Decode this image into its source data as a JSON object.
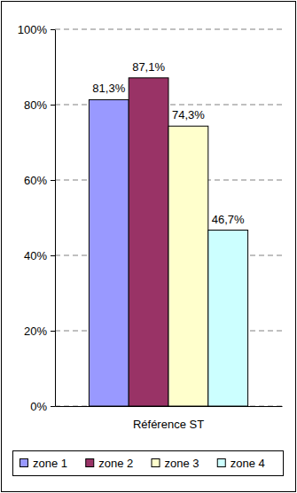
{
  "chart_data": {
    "type": "bar",
    "categories": [
      "Référence ST"
    ],
    "series": [
      {
        "name": "zone 1",
        "color": "#9999ff",
        "values": [
          81.3
        ],
        "value_labels": [
          "81,3%"
        ]
      },
      {
        "name": "zone 2",
        "color": "#993366",
        "values": [
          87.1
        ],
        "value_labels": [
          "87,1%"
        ]
      },
      {
        "name": "zone 3",
        "color": "#ffffcc",
        "values": [
          74.3
        ],
        "value_labels": [
          "74,3%"
        ]
      },
      {
        "name": "zone 4",
        "color": "#ccffff",
        "values": [
          46.7
        ],
        "value_labels": [
          "46,7%"
        ]
      }
    ],
    "ylim": [
      0,
      100
    ],
    "yticks": [
      {
        "value": 0,
        "label": "0%"
      },
      {
        "value": 20,
        "label": "20%"
      },
      {
        "value": 40,
        "label": "40%"
      },
      {
        "value": 60,
        "label": "60%"
      },
      {
        "value": 80,
        "label": "80%"
      },
      {
        "value": 100,
        "label": "100%"
      }
    ],
    "grid": true,
    "data_labels": true,
    "legend": "bottom"
  }
}
